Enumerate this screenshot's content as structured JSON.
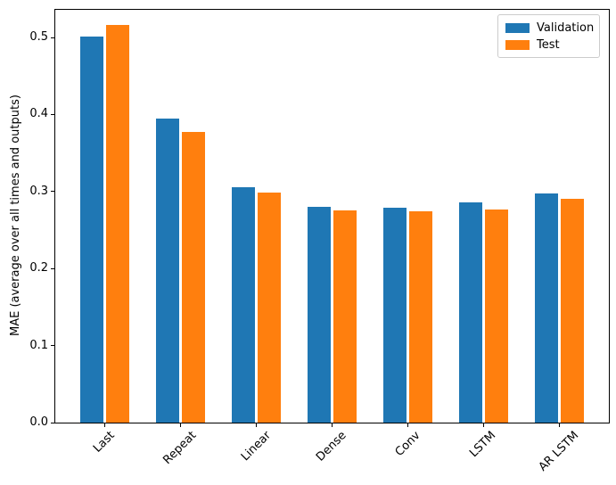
{
  "figure": {
    "background": "#ffffff"
  },
  "chart_data": {
    "type": "bar",
    "title": "",
    "xlabel": "",
    "ylabel": "MAE (average over all times and outputs)",
    "categories": [
      "Last",
      "Repeat",
      "Linear",
      "Dense",
      "Conv",
      "LSTM",
      "AR LSTM"
    ],
    "series": [
      {
        "name": "Validation",
        "color": "#1f77b4",
        "values": [
          0.501,
          0.395,
          0.306,
          0.28,
          0.279,
          0.286,
          0.297
        ]
      },
      {
        "name": "Test",
        "color": "#ff7f0e",
        "values": [
          0.516,
          0.377,
          0.299,
          0.276,
          0.274,
          0.277,
          0.291
        ]
      }
    ],
    "ylim": [
      0,
      0.536
    ],
    "ytick_values": [
      0.0,
      0.1,
      0.2,
      0.3,
      0.4,
      0.5
    ],
    "ytick_labels": [
      "0.0",
      "0.1",
      "0.2",
      "0.3",
      "0.4",
      "0.5"
    ],
    "xtick_rotation": 45,
    "grid": false,
    "legend": {
      "position": "upper right",
      "entries": [
        "Validation",
        "Test"
      ]
    }
  }
}
